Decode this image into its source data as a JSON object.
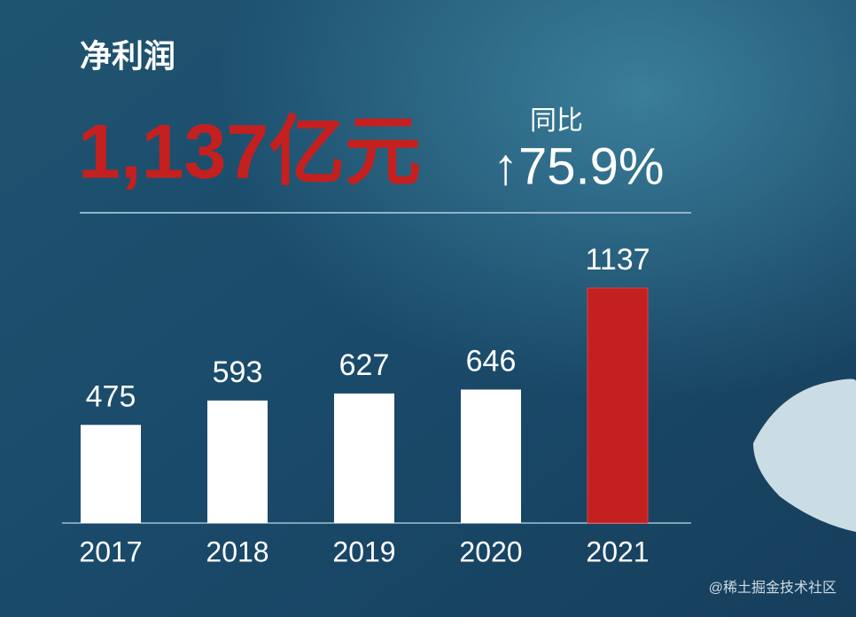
{
  "chart_data": {
    "type": "bar",
    "title": "净利润",
    "headline": "1,137亿元",
    "yoy_label": "同比",
    "yoy_value": "↑75.9%",
    "categories": [
      "2017",
      "2018",
      "2019",
      "2020",
      "2021"
    ],
    "values": [
      475,
      593,
      627,
      646,
      1137
    ],
    "colors": [
      "#ffffff",
      "#ffffff",
      "#ffffff",
      "#ffffff",
      "#c42020"
    ]
  },
  "watermark": "@稀土掘金技术社区"
}
